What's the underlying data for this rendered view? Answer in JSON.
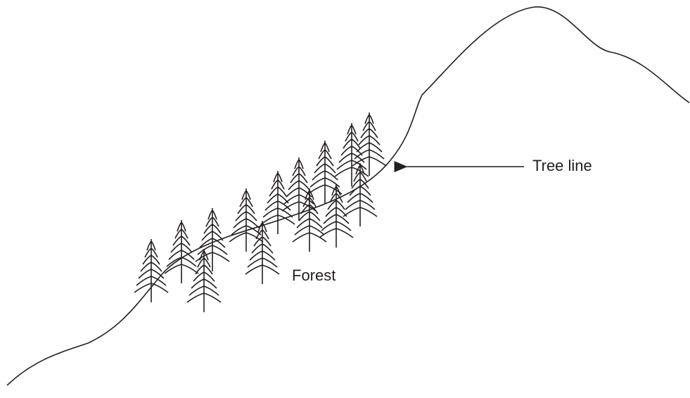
{
  "labels": {
    "tree_line": "Tree line",
    "forest": "Forest"
  }
}
